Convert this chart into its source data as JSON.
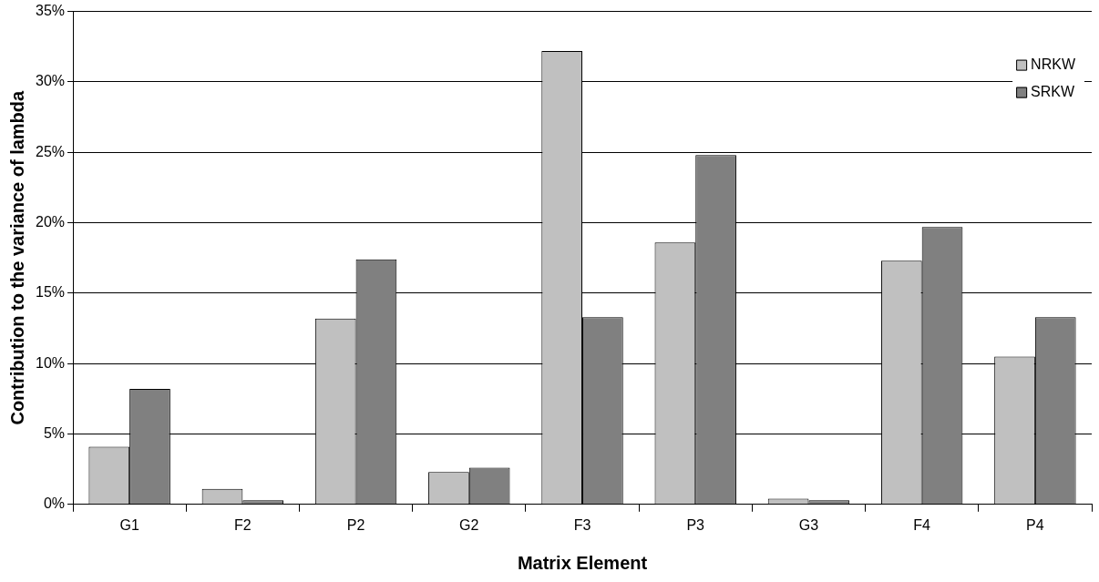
{
  "chart_data": {
    "type": "bar",
    "xlabel": "Matrix Element",
    "ylabel": "Contribution to the variance of lambda",
    "categories": [
      "G1",
      "F2",
      "P2",
      "G2",
      "F3",
      "P3",
      "G3",
      "F4",
      "P4"
    ],
    "series": [
      {
        "name": "NRKW",
        "color": "#c0c0c0",
        "values": [
          4.1,
          1.1,
          13.2,
          2.3,
          32.2,
          18.6,
          0.4,
          17.3,
          10.5
        ]
      },
      {
        "name": "SRKW",
        "color": "#808080",
        "values": [
          8.2,
          0.3,
          17.4,
          2.6,
          13.3,
          24.8,
          0.3,
          19.7,
          13.3
        ]
      }
    ],
    "ylim": [
      0,
      35
    ],
    "yticks": [
      {
        "value": 0,
        "label": "0%"
      },
      {
        "value": 5,
        "label": "5%"
      },
      {
        "value": 10,
        "label": "10%"
      },
      {
        "value": 15,
        "label": "15%"
      },
      {
        "value": 20,
        "label": "20%"
      },
      {
        "value": 25,
        "label": "25%"
      },
      {
        "value": 30,
        "label": "30%"
      },
      {
        "value": 35,
        "label": "35%"
      }
    ],
    "grid": "y",
    "legend": "top right"
  }
}
